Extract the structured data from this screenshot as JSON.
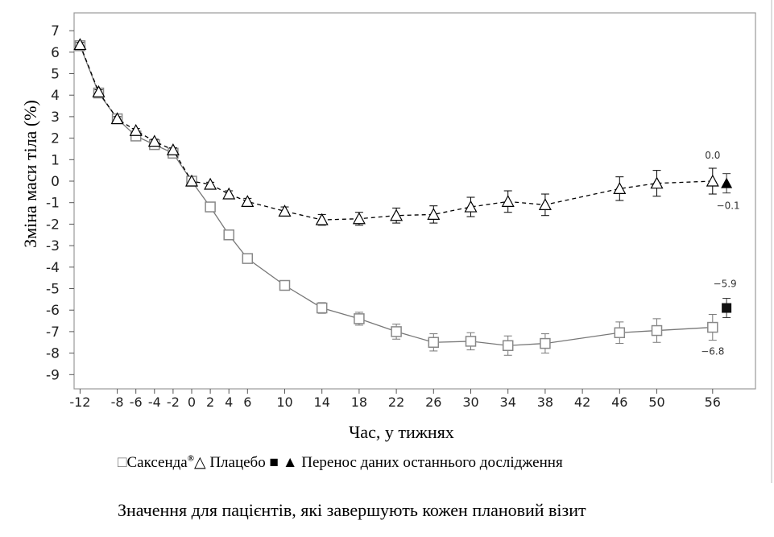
{
  "chart_data": {
    "type": "line",
    "xlabel": "Час, у тижнях",
    "ylabel": "Зміна маси тіла (%)",
    "xlim": [
      -13,
      59
    ],
    "ylim": [
      -9.5,
      7.5
    ],
    "x_ticks": [
      -12,
      -8,
      -6,
      -4,
      -2,
      0,
      2,
      4,
      6,
      10,
      14,
      18,
      22,
      26,
      30,
      34,
      38,
      42,
      46,
      50,
      56
    ],
    "y_ticks": [
      7,
      6,
      5,
      4,
      3,
      2,
      1,
      0,
      -1,
      -2,
      -3,
      -4,
      -5,
      -6,
      -7,
      -8,
      -9
    ],
    "grid": false,
    "series": [
      {
        "name": "Саксенда®",
        "marker": "open-square",
        "line": "solid",
        "color": "#777777",
        "x": [
          -12,
          -10,
          -8,
          -6,
          -4,
          -2,
          0,
          2,
          4,
          6,
          10,
          14,
          18,
          22,
          26,
          30,
          34,
          38,
          46,
          50,
          56
        ],
        "y": [
          6.3,
          4.1,
          2.9,
          2.1,
          1.7,
          1.3,
          0,
          -1.2,
          -2.5,
          -3.6,
          -4.85,
          -5.9,
          -6.4,
          -7.0,
          -7.5,
          -7.45,
          -7.65,
          -7.55,
          -7.05,
          -6.95,
          -6.8
        ],
        "err": [
          0.1,
          0.1,
          0.1,
          0.1,
          0.1,
          0.1,
          0,
          0.1,
          0.15,
          0.2,
          0.2,
          0.25,
          0.3,
          0.35,
          0.4,
          0.4,
          0.45,
          0.45,
          0.5,
          0.55,
          0.6
        ]
      },
      {
        "name": "Плацебо",
        "marker": "open-triangle",
        "line": "dashed",
        "color": "#000000",
        "x": [
          -12,
          -10,
          -8,
          -6,
          -4,
          -2,
          0,
          2,
          4,
          6,
          10,
          14,
          18,
          22,
          26,
          30,
          34,
          38,
          46,
          50,
          56
        ],
        "y": [
          6.35,
          4.15,
          2.9,
          2.35,
          1.85,
          1.45,
          0,
          -0.15,
          -0.6,
          -0.95,
          -1.4,
          -1.8,
          -1.75,
          -1.6,
          -1.55,
          -1.2,
          -0.95,
          -1.1,
          -0.35,
          -0.1,
          0.0
        ],
        "err": [
          0.1,
          0.1,
          0.1,
          0.1,
          0.1,
          0.1,
          0,
          0.1,
          0.15,
          0.15,
          0.2,
          0.25,
          0.3,
          0.35,
          0.4,
          0.45,
          0.5,
          0.5,
          0.55,
          0.6,
          0.6
        ]
      }
    ],
    "locf": [
      {
        "marker": "filled-square",
        "x": 57.5,
        "y": -5.9,
        "err": 0.45
      },
      {
        "marker": "filled-triangle",
        "x": 57.5,
        "y": -0.1,
        "err": 0.45
      }
    ],
    "annotations": [
      "0.0",
      "−0.1",
      "−5.9",
      "−6.8"
    ],
    "legend": {
      "placement": "bottom",
      "saxenda": "Саксенда",
      "registered": "®",
      "placebo": "Плацебо",
      "locf": "Перенос даних останнього дослідження"
    },
    "note": "Значення для пацієнтів, які завершують кожен плановий візит"
  }
}
